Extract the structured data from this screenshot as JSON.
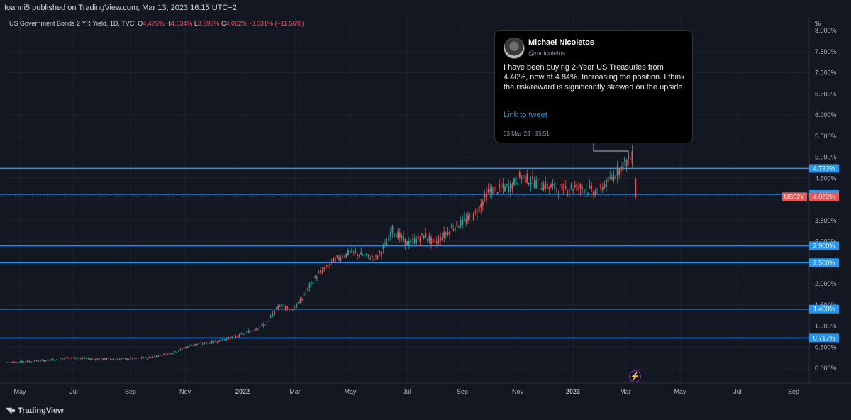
{
  "header": {
    "published": "Ioanni5 published on TradingView.com, Mar 13, 2023 16:15 UTC+2"
  },
  "legend": {
    "symbol": "US Government Bonds 2 YR Yield, 1D, TVC",
    "o_label": "O",
    "o_value": "4.475%",
    "h_label": "H",
    "h_value": "4.534%",
    "l_label": "L",
    "l_value": "3.999%",
    "c_label": "C",
    "c_value": "4.062%",
    "change": "-0.531% (−11.56%)"
  },
  "axis": {
    "unit": "%",
    "y_ticks": [
      "8.000%",
      "7.500%",
      "7.000%",
      "6.500%",
      "6.000%",
      "5.500%",
      "5.000%",
      "4.500%",
      "3.500%",
      "3.000%",
      "2.000%",
      "1.500%",
      "1.000%",
      "0.500%",
      "0.000%"
    ],
    "x_ticks": [
      "May",
      "Jul",
      "Sep",
      "Nov",
      "2022",
      "Mar",
      "May",
      "Jul",
      "Sep",
      "Nov",
      "2023",
      "Mar",
      "May",
      "Jul",
      "Sep"
    ]
  },
  "hlines": [
    {
      "value": 4.733,
      "label": "4.733%"
    },
    {
      "value": 4.119,
      "label": "4.119%"
    },
    {
      "value": 2.9,
      "label": "2.900%"
    },
    {
      "value": 2.5,
      "label": "2.500%"
    },
    {
      "value": 1.4,
      "label": "1.400%"
    },
    {
      "value": 0.717,
      "label": "0.717%"
    }
  ],
  "price_tag": {
    "symbol": "US02Y",
    "value": "4.062%"
  },
  "colors": {
    "up": "#26a69a",
    "down": "#ef5350",
    "hline": "#2196f3",
    "bg": "#131722",
    "grid": "#1e222d",
    "text": "#d1d4dc"
  },
  "tweet": {
    "name": "Michael Nicoletos",
    "handle": "@mnicoletos",
    "text": "I have been buying 2-Year US Treasuries from 4.40%, now at 4.84%. Increasing the position. I think the risk/reward is significantly skewed on the upside",
    "link": "Link to tweet",
    "date": "03 Mar '23 · 15:51"
  },
  "footer": {
    "brand": "TradingView"
  },
  "chart_data": {
    "type": "line",
    "title": "US Government Bonds 2 YR Yield, 1D, TVC",
    "ylabel": "%",
    "ylim": [
      -0.3,
      8.0
    ],
    "x": [
      "2021-05",
      "2021-07",
      "2021-09",
      "2021-11",
      "2022-01",
      "2022-03",
      "2022-05",
      "2022-07",
      "2022-09",
      "2022-11",
      "2023-01",
      "2023-03-13"
    ],
    "series": [
      {
        "values": [
          0.15,
          0.25,
          0.22,
          0.55,
          0.78,
          1.45,
          2.7,
          2.95,
          3.9,
          4.55,
          4.3,
          4.06
        ]
      }
    ]
  }
}
